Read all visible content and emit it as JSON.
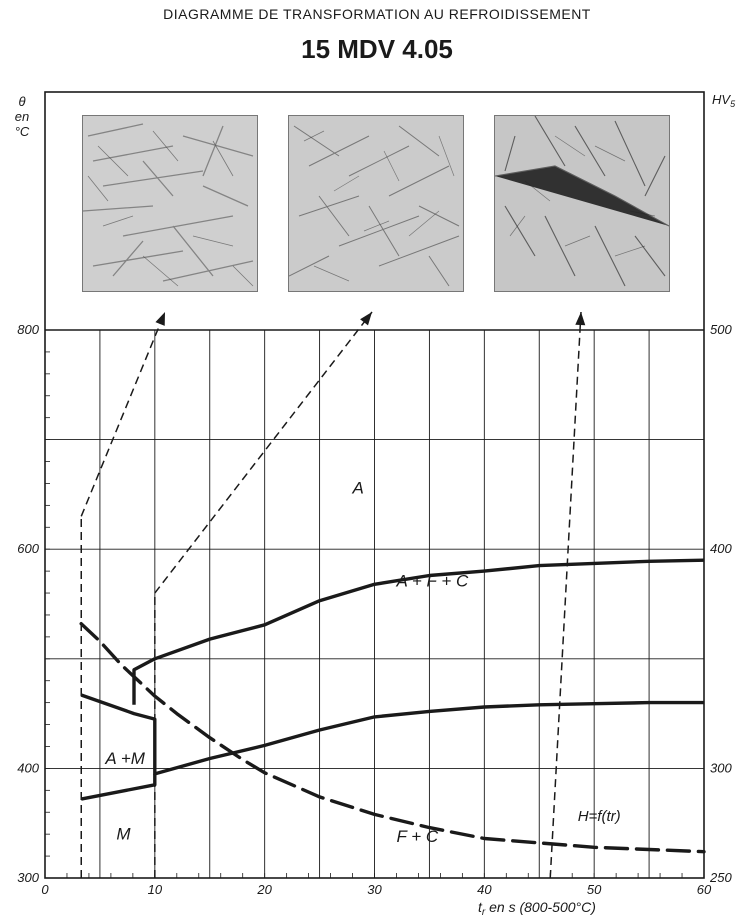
{
  "header": {
    "diagram_title": "DIAGRAMME DE TRANSFORMATION AU REFROIDISSEMENT",
    "steel_grade": "15 MDV 4.05"
  },
  "micrographs": [
    {
      "name": "micrograph-1",
      "points_to_tr_s": 3.3
    },
    {
      "name": "micrograph-2",
      "points_to_tr_s": 10
    },
    {
      "name": "micrograph-3",
      "points_to_tr_s": 46
    }
  ],
  "chart_data": {
    "type": "line",
    "xlabel": "t_r en s (800-500°C)",
    "xlabel_parts": {
      "t": "t",
      "sub": "r",
      "rest": " en s (800-500°C)"
    },
    "ylabel_left": "θ en °C",
    "ylabel_left_parts": [
      "θ",
      "en",
      "°C"
    ],
    "ylabel_right": "HV5",
    "ylabel_right_parts": {
      "main": "HV",
      "sub": "5"
    },
    "xlim": [
      0,
      60
    ],
    "ylim_left": [
      300,
      800
    ],
    "ylim_right": [
      250,
      500
    ],
    "grid": true,
    "x_ticks": [
      0,
      10,
      20,
      30,
      40,
      50,
      60
    ],
    "x_tick_labels": [
      "0",
      "10",
      "20",
      "30",
      "40",
      "50",
      "60"
    ],
    "y_left_ticks": [
      300,
      400,
      600,
      800
    ],
    "y_left_tick_labels": [
      "300",
      "400",
      "600",
      "800"
    ],
    "y_right_ticks": [
      250,
      300,
      400,
      500
    ],
    "y_right_tick_labels": [
      "250",
      "300",
      "400",
      "500"
    ],
    "regions": [
      {
        "label": "A",
        "x": 28,
        "y": 651
      },
      {
        "label": "A +  F +  C",
        "x": 32,
        "y": 566
      },
      {
        "label": "A +M",
        "x": 5.5,
        "y": 404
      },
      {
        "label": "M",
        "x": 6.5,
        "y": 335
      },
      {
        "label": "F +  C",
        "x": 32,
        "y": 333
      }
    ],
    "series": [
      {
        "kind": "boundary",
        "points": [
          [
            8.1,
            458
          ],
          [
            8.1,
            490
          ],
          [
            10,
            500
          ],
          [
            15,
            518
          ],
          [
            20,
            531
          ],
          [
            25,
            553
          ],
          [
            30,
            568
          ],
          [
            35,
            576
          ],
          [
            40,
            580
          ],
          [
            45,
            585
          ],
          [
            50,
            587
          ],
          [
            55,
            589
          ],
          [
            60,
            590
          ]
        ]
      },
      {
        "kind": "boundary",
        "points": [
          [
            3.3,
            467
          ],
          [
            8.1,
            450
          ],
          [
            10,
            445
          ],
          [
            10,
            395
          ],
          [
            15,
            409
          ],
          [
            20,
            421
          ],
          [
            25,
            435
          ],
          [
            30,
            447
          ],
          [
            35,
            452
          ],
          [
            40,
            456
          ],
          [
            45,
            458
          ],
          [
            50,
            459
          ],
          [
            55,
            460
          ],
          [
            60,
            460
          ]
        ]
      },
      {
        "kind": "boundary",
        "points": [
          [
            3.3,
            372
          ],
          [
            10,
            385
          ],
          [
            10,
            395
          ]
        ]
      },
      {
        "name": "H=f(tr)",
        "kind": "hardness",
        "axis": "right",
        "points": [
          [
            3.3,
            366
          ],
          [
            5,
            358
          ],
          [
            7,
            347
          ],
          [
            10,
            333
          ],
          [
            12,
            325
          ],
          [
            15,
            314
          ],
          [
            18,
            304
          ],
          [
            20,
            298
          ],
          [
            25,
            287
          ],
          [
            30,
            279
          ],
          [
            35,
            273
          ],
          [
            40,
            268
          ],
          [
            45,
            266
          ],
          [
            50,
            264
          ],
          [
            55,
            263
          ],
          [
            60,
            262
          ]
        ]
      }
    ],
    "cooling_markers": [
      {
        "x": 3.3,
        "y_left": 630
      },
      {
        "x": 10,
        "y_left": 560
      },
      {
        "x": 46,
        "y_left": 300
      }
    ],
    "colors": {
      "line": "#1a1a1a",
      "grid": "#1a1a1a",
      "photo": "#d9d9d9"
    }
  }
}
